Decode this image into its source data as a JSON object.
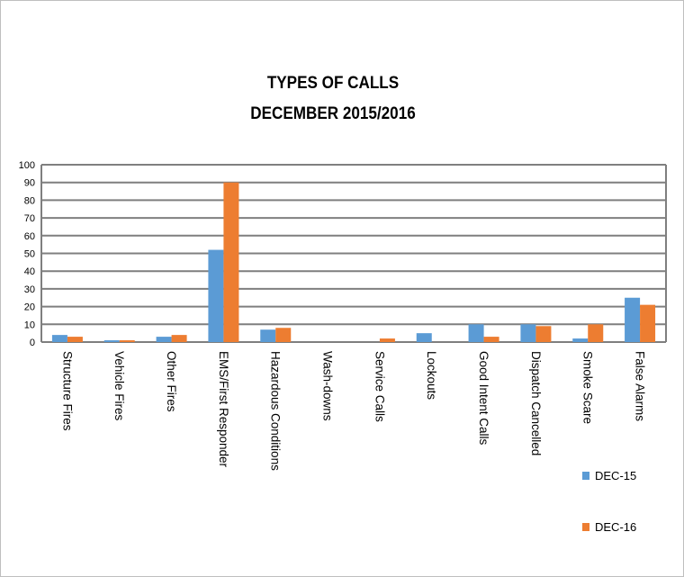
{
  "chart_data": {
    "type": "bar",
    "title": "TYPES OF CALLS",
    "subtitle": "DECEMBER 2015/2016",
    "categories": [
      "Structure Fires",
      "Vehicle Fires",
      "Other Fires",
      "EMS/First Responder",
      "Hazardous Conditions",
      "Wash-downs",
      "Service Calls",
      "Lockouts",
      "Good Intent Calls",
      "Dispatch Cancelled",
      "Smoke Scare",
      "False Alarms"
    ],
    "series": [
      {
        "name": "DEC-15",
        "color": "#5b9bd5",
        "values": [
          4,
          1,
          3,
          52,
          7,
          0,
          0,
          5,
          10,
          10,
          2,
          25
        ]
      },
      {
        "name": "DEC-16",
        "color": "#ed7d31",
        "values": [
          3,
          1,
          4,
          90,
          8,
          0,
          2,
          0,
          3,
          9,
          10,
          21
        ]
      }
    ],
    "yticks": [
      0,
      10,
      20,
      30,
      40,
      50,
      60,
      70,
      80,
      90,
      100
    ],
    "ylim": [
      0,
      100
    ],
    "grid": true,
    "legend_position": "bottom-right"
  }
}
